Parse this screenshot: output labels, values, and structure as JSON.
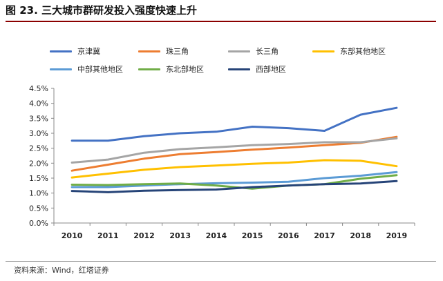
{
  "title": "图 23. 三大城市群研发投入强度快速上升",
  "source": "资料来源：Wind，红塔证券",
  "chart_data": {
    "type": "line",
    "x": [
      "2010",
      "2011",
      "2012",
      "2013",
      "2014",
      "2015",
      "2016",
      "2017",
      "2018",
      "2019"
    ],
    "ylim": [
      0,
      4.5
    ],
    "yticks": [
      "0.0%",
      "0.5%",
      "1.0%",
      "1.5%",
      "2.0%",
      "2.5%",
      "3.0%",
      "3.5%",
      "4.0%",
      "4.5%"
    ],
    "legend_position": "top",
    "grid": false,
    "series": [
      {
        "name": "京津冀",
        "color": "#4472c4",
        "values": [
          2.75,
          2.75,
          2.9,
          3.0,
          3.05,
          3.22,
          3.17,
          3.08,
          3.62,
          3.85
        ]
      },
      {
        "name": "珠三角",
        "color": "#ed7d31",
        "values": [
          1.75,
          1.95,
          2.15,
          2.3,
          2.37,
          2.45,
          2.52,
          2.6,
          2.68,
          2.88
        ]
      },
      {
        "name": "长三角",
        "color": "#a5a5a5",
        "values": [
          2.02,
          2.12,
          2.35,
          2.47,
          2.53,
          2.6,
          2.64,
          2.7,
          2.7,
          2.83
        ]
      },
      {
        "name": "东部其他地区",
        "color": "#ffc000",
        "values": [
          1.52,
          1.65,
          1.78,
          1.87,
          1.92,
          1.98,
          2.02,
          2.1,
          2.08,
          1.9
        ]
      },
      {
        "name": "中部其他地区",
        "color": "#5b9bd5",
        "values": [
          1.2,
          1.2,
          1.25,
          1.3,
          1.33,
          1.35,
          1.38,
          1.5,
          1.58,
          1.7
        ]
      },
      {
        "name": "东北部地区",
        "color": "#70ad47",
        "values": [
          1.28,
          1.27,
          1.3,
          1.32,
          1.25,
          1.15,
          1.25,
          1.3,
          1.48,
          1.6
        ]
      },
      {
        "name": "西部地区",
        "color": "#264478",
        "values": [
          1.07,
          1.03,
          1.08,
          1.1,
          1.12,
          1.2,
          1.25,
          1.3,
          1.32,
          1.4
        ]
      }
    ]
  }
}
